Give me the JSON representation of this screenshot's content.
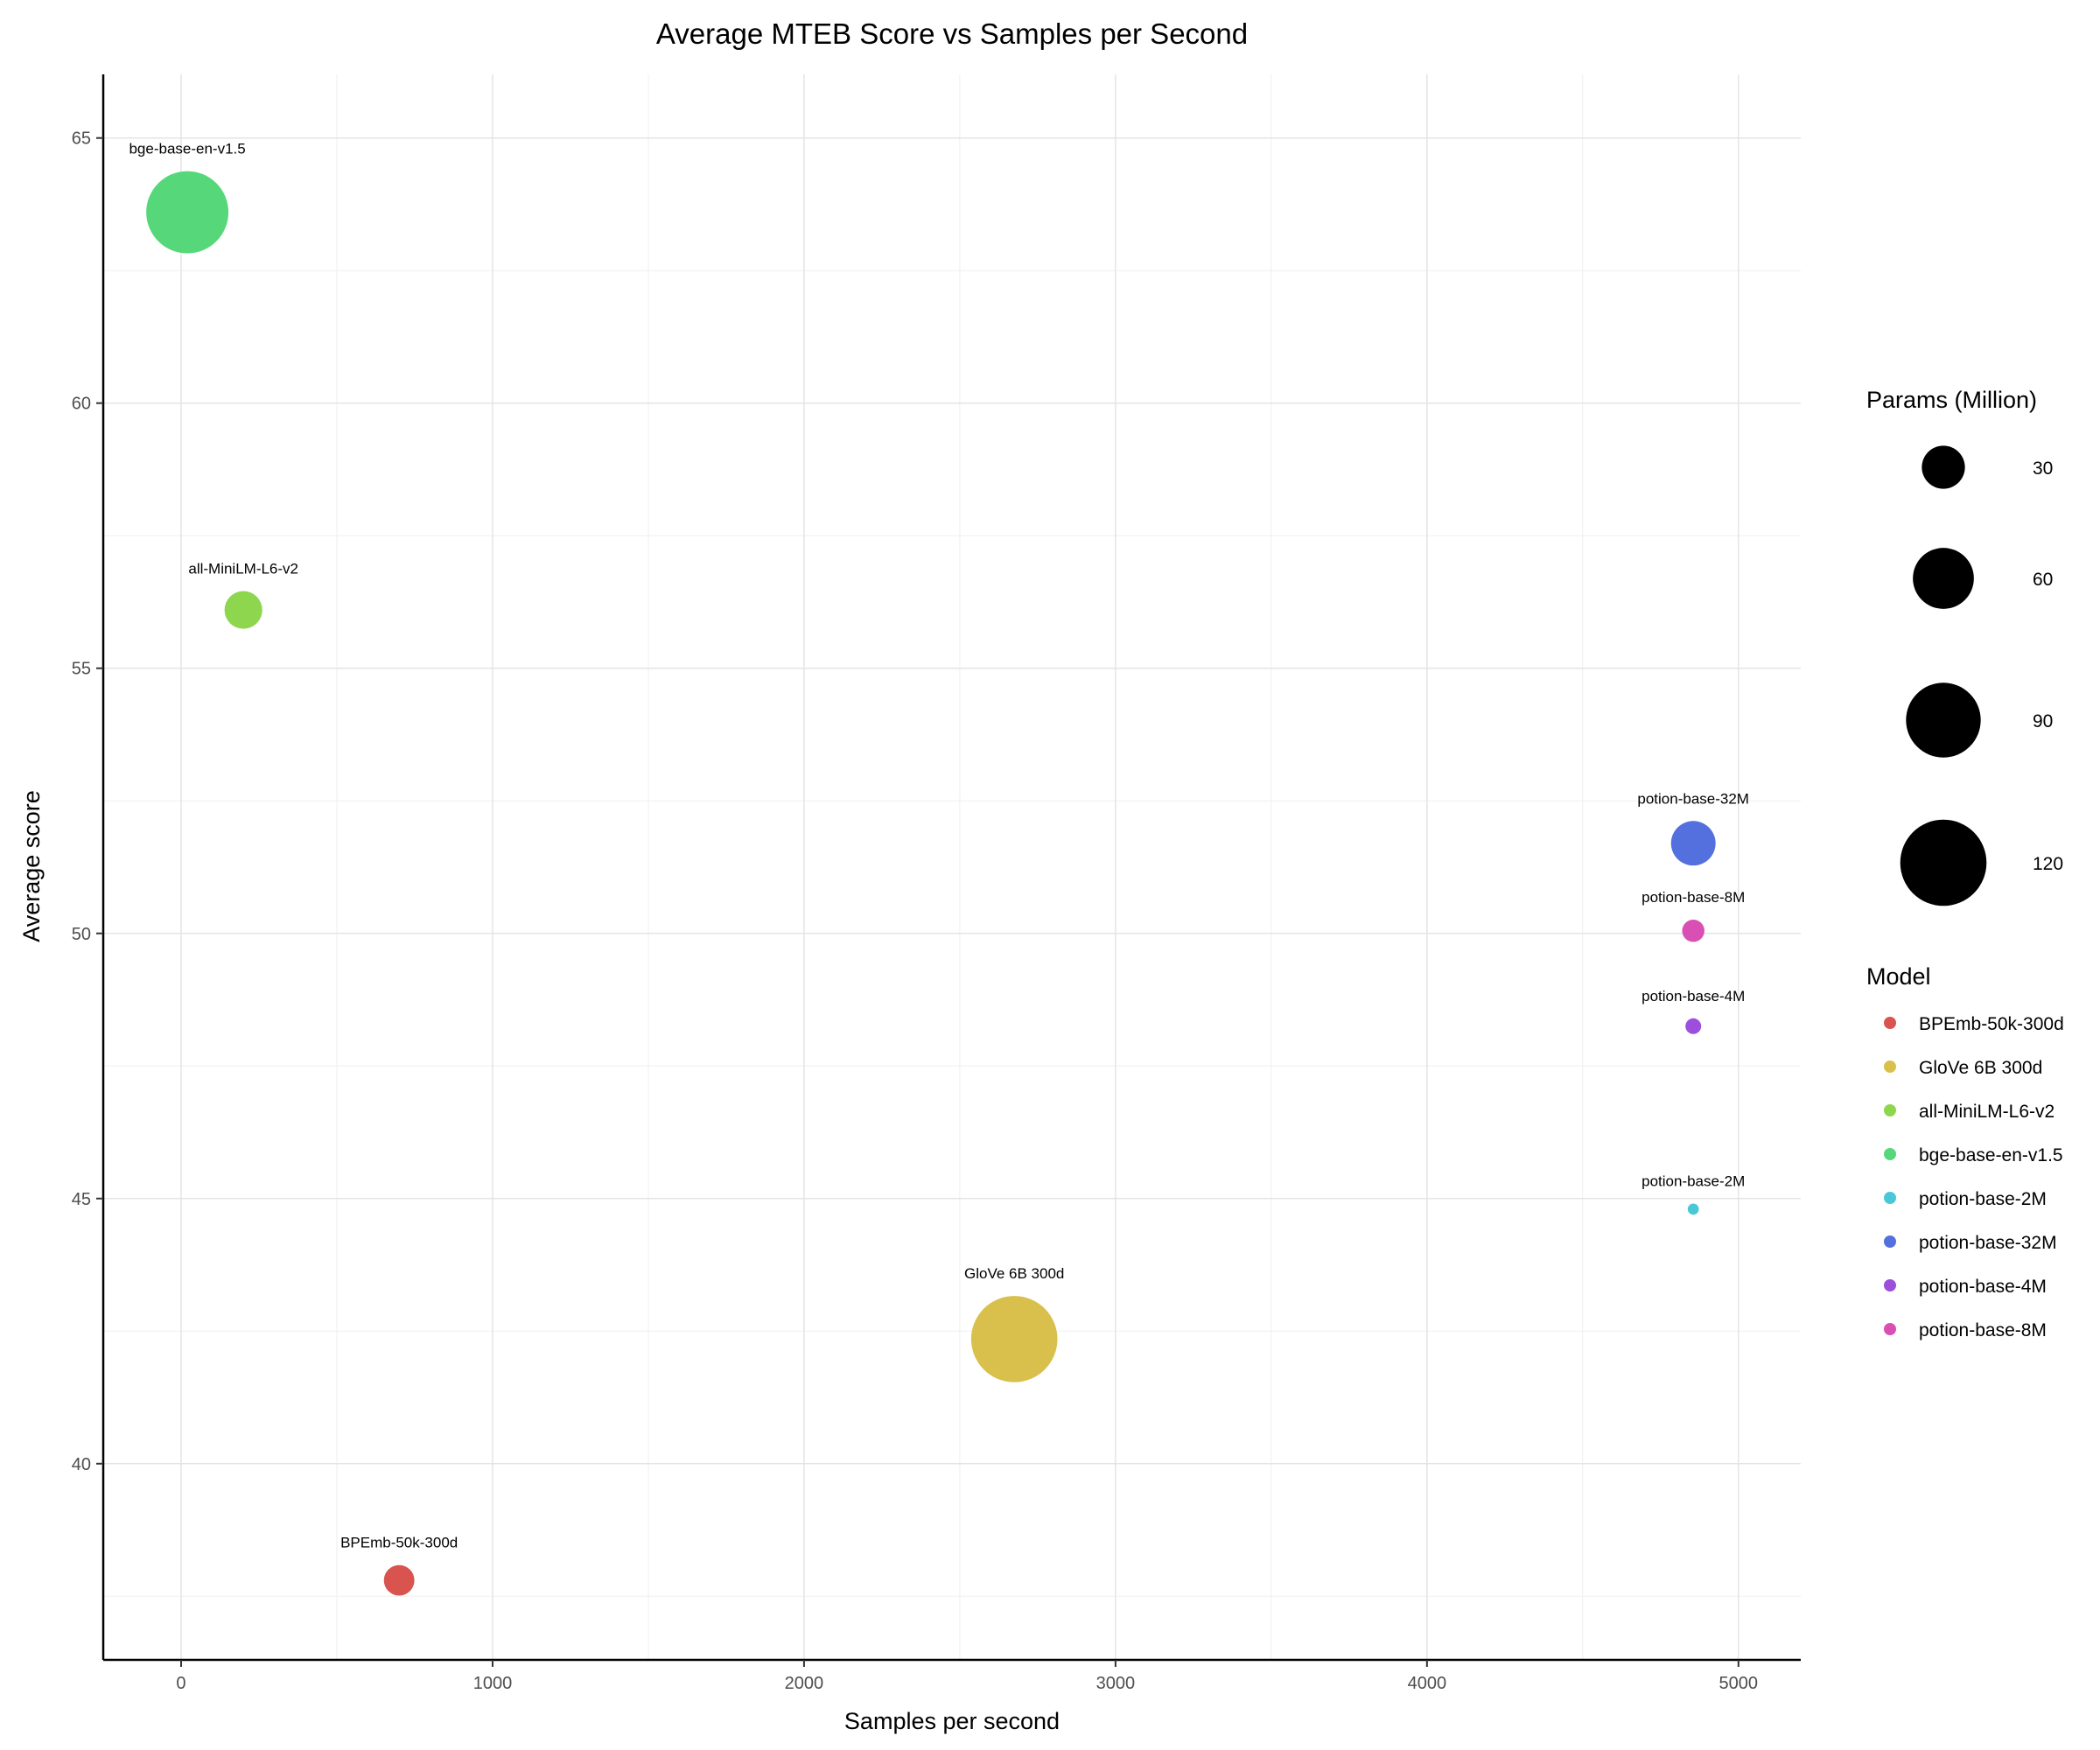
{
  "chart_data": {
    "type": "scatter",
    "title": "Average MTEB Score vs Samples per Second",
    "xlabel": "Samples per second",
    "ylabel": "Average score",
    "xlim": [
      -250,
      5200
    ],
    "ylim": [
      36.3,
      66.2
    ],
    "xticks": [
      0,
      1000,
      2000,
      3000,
      4000,
      5000
    ],
    "yticks": [
      40,
      45,
      50,
      55,
      60,
      65
    ],
    "xtick_labels": [
      "0",
      "1000",
      "2000",
      "3000",
      "4000",
      "5000"
    ],
    "ytick_labels": [
      "40",
      "45",
      "50",
      "55",
      "60",
      "65"
    ],
    "grid": true,
    "size_legend": {
      "title": "Params (Million)",
      "values": [
        30,
        60,
        90,
        120
      ],
      "labels": [
        "30",
        "60",
        "90",
        "120"
      ]
    },
    "color_legend": {
      "title": "Model",
      "placement": "right"
    },
    "points": [
      {
        "model": "BPEmb-50k-300d",
        "samples_per_second": 700,
        "average_score": 37.8,
        "params_million": 15,
        "color": "#d9534f"
      },
      {
        "model": "GloVe 6B 300d",
        "samples_per_second": 2675,
        "average_score": 42.35,
        "params_million": 120,
        "color": "#d9c04d"
      },
      {
        "model": "all-MiniLM-L6-v2",
        "samples_per_second": 200,
        "average_score": 56.1,
        "params_million": 23,
        "color": "#8fd64f"
      },
      {
        "model": "bge-base-en-v1.5",
        "samples_per_second": 20,
        "average_score": 63.6,
        "params_million": 109,
        "color": "#56d87a"
      },
      {
        "model": "potion-base-2M",
        "samples_per_second": 4855,
        "average_score": 44.8,
        "params_million": 2,
        "color": "#4ac8d8"
      },
      {
        "model": "potion-base-32M",
        "samples_per_second": 4855,
        "average_score": 51.7,
        "params_million": 32,
        "color": "#5470de"
      },
      {
        "model": "potion-base-4M",
        "samples_per_second": 4855,
        "average_score": 48.25,
        "params_million": 4,
        "color": "#9b4fdc"
      },
      {
        "model": "potion-base-8M",
        "samples_per_second": 4855,
        "average_score": 50.05,
        "params_million": 8,
        "color": "#d94fb4"
      }
    ]
  }
}
